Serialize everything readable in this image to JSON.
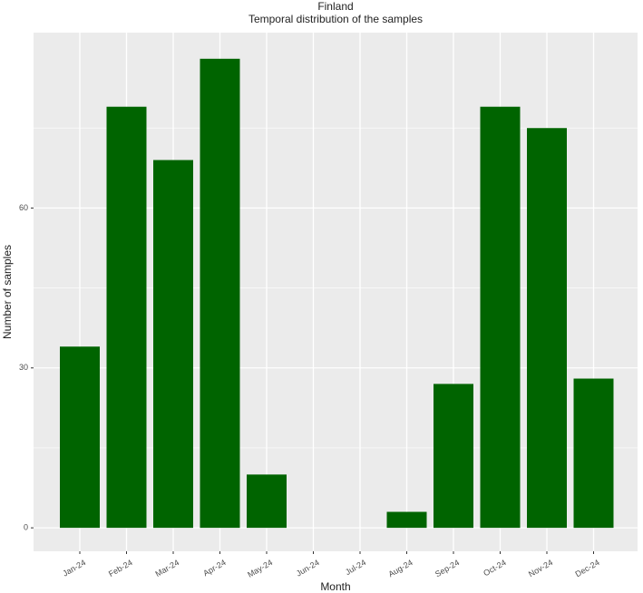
{
  "chart_data": {
    "type": "bar",
    "title": "Finland",
    "subtitle": "Temporal distribution of the samples",
    "x_label": "Month",
    "y_label": "Number of samples",
    "categories": [
      "Jan-24",
      "Feb-24",
      "Mar-24",
      "Apr-24",
      "May-24",
      "Jun-24",
      "Jul-24",
      "Aug-24",
      "Sep-24",
      "Oct-24",
      "Nov-24",
      "Dec-24"
    ],
    "values": [
      34,
      79,
      69,
      88,
      10,
      0,
      0,
      3,
      27,
      79,
      75,
      28
    ],
    "color": "#006400",
    "ylim": [
      -4.4,
      92.9
    ],
    "yticks": [
      0,
      30,
      60
    ],
    "minor_yticks": [
      15,
      45,
      75
    ],
    "grid": true
  }
}
